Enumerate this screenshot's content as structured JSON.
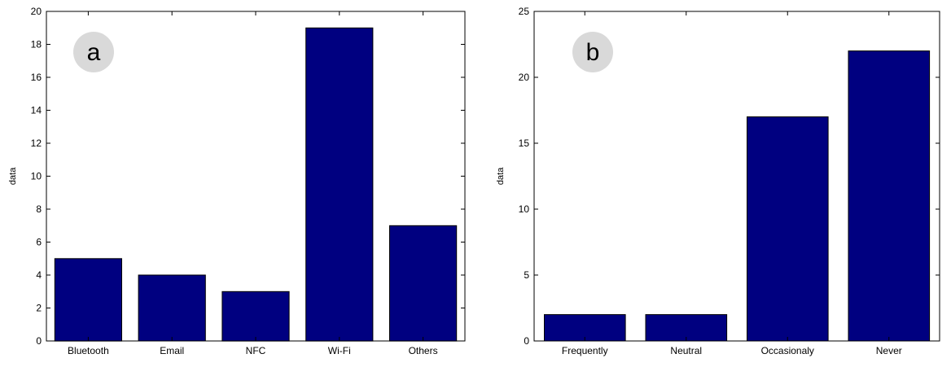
{
  "chart_data": [
    {
      "type": "bar",
      "panel_label": "a",
      "categories": [
        "Bluetooth",
        "Email",
        "NFC",
        "Wi-Fi",
        "Others"
      ],
      "values": [
        5,
        4,
        3,
        19,
        7
      ],
      "ylabel": "data",
      "xlabel": "",
      "ylim": [
        0,
        20
      ],
      "yticks": [
        0,
        2,
        4,
        6,
        8,
        10,
        12,
        14,
        16,
        18,
        20
      ],
      "bar_color": "#000080",
      "grid": false
    },
    {
      "type": "bar",
      "panel_label": "b",
      "categories": [
        "Frequently",
        "Neutral",
        "Occasionaly",
        "Never"
      ],
      "values": [
        2,
        2,
        17,
        22
      ],
      "ylabel": "data",
      "xlabel": "",
      "ylim": [
        0,
        25
      ],
      "yticks": [
        0,
        5,
        10,
        15,
        20,
        25
      ],
      "bar_color": "#000080",
      "grid": false
    }
  ],
  "colors": {
    "bar": "#000080",
    "badge": "#d9d9d9",
    "axes": "#000000"
  }
}
